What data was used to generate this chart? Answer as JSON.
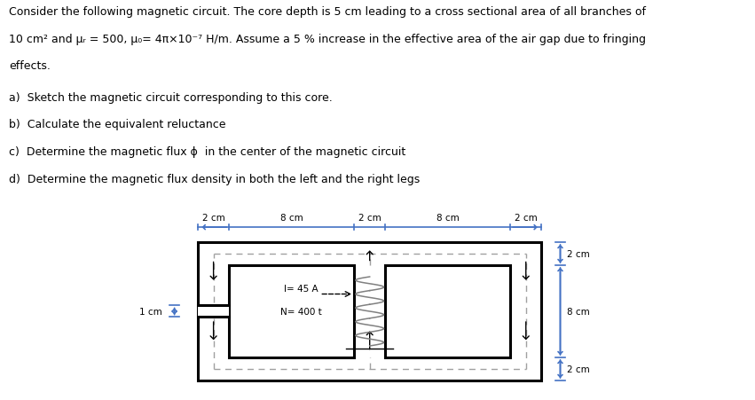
{
  "background_color": "#ffffff",
  "fig_width": 8.51,
  "fig_height": 4.52,
  "dpi": 100,
  "text_lines": [
    "Consider the following magnetic circuit. The core depth is 5 cm leading to a cross sectional area of all branches of",
    "10 cm² and μᵣ = 500, μ₀= 4π×10⁻⁷ H/m. Assume a 5 % increase in the effective area of the air gap due to fringing",
    "effects."
  ],
  "list_items": [
    "a)  Sketch the magnetic circuit corresponding to this core.",
    "b)  Calculate the equivalent reluctance",
    "c)  Determine the magnetic flux ϕ  in the center of the magnetic circuit",
    "d)  Determine the magnetic flux density in both the left and the right legs"
  ],
  "dim_labels_top": [
    "2 cm",
    "8 cm",
    "2 cm",
    "8 cm",
    "2 cm"
  ],
  "dim_labels_right": [
    "2 cm",
    "8 cm",
    "2 cm"
  ],
  "dim_label_left": "1 cm",
  "coil_label1": "I= 45 A",
  "coil_label2": "N= 400 t",
  "core_color": "#000000",
  "dashed_color": "#a0a0a0",
  "dim_line_color": "#4472c4",
  "coil_color": "#808080",
  "text_fontsize": 9.0,
  "list_fontsize": 9.0
}
